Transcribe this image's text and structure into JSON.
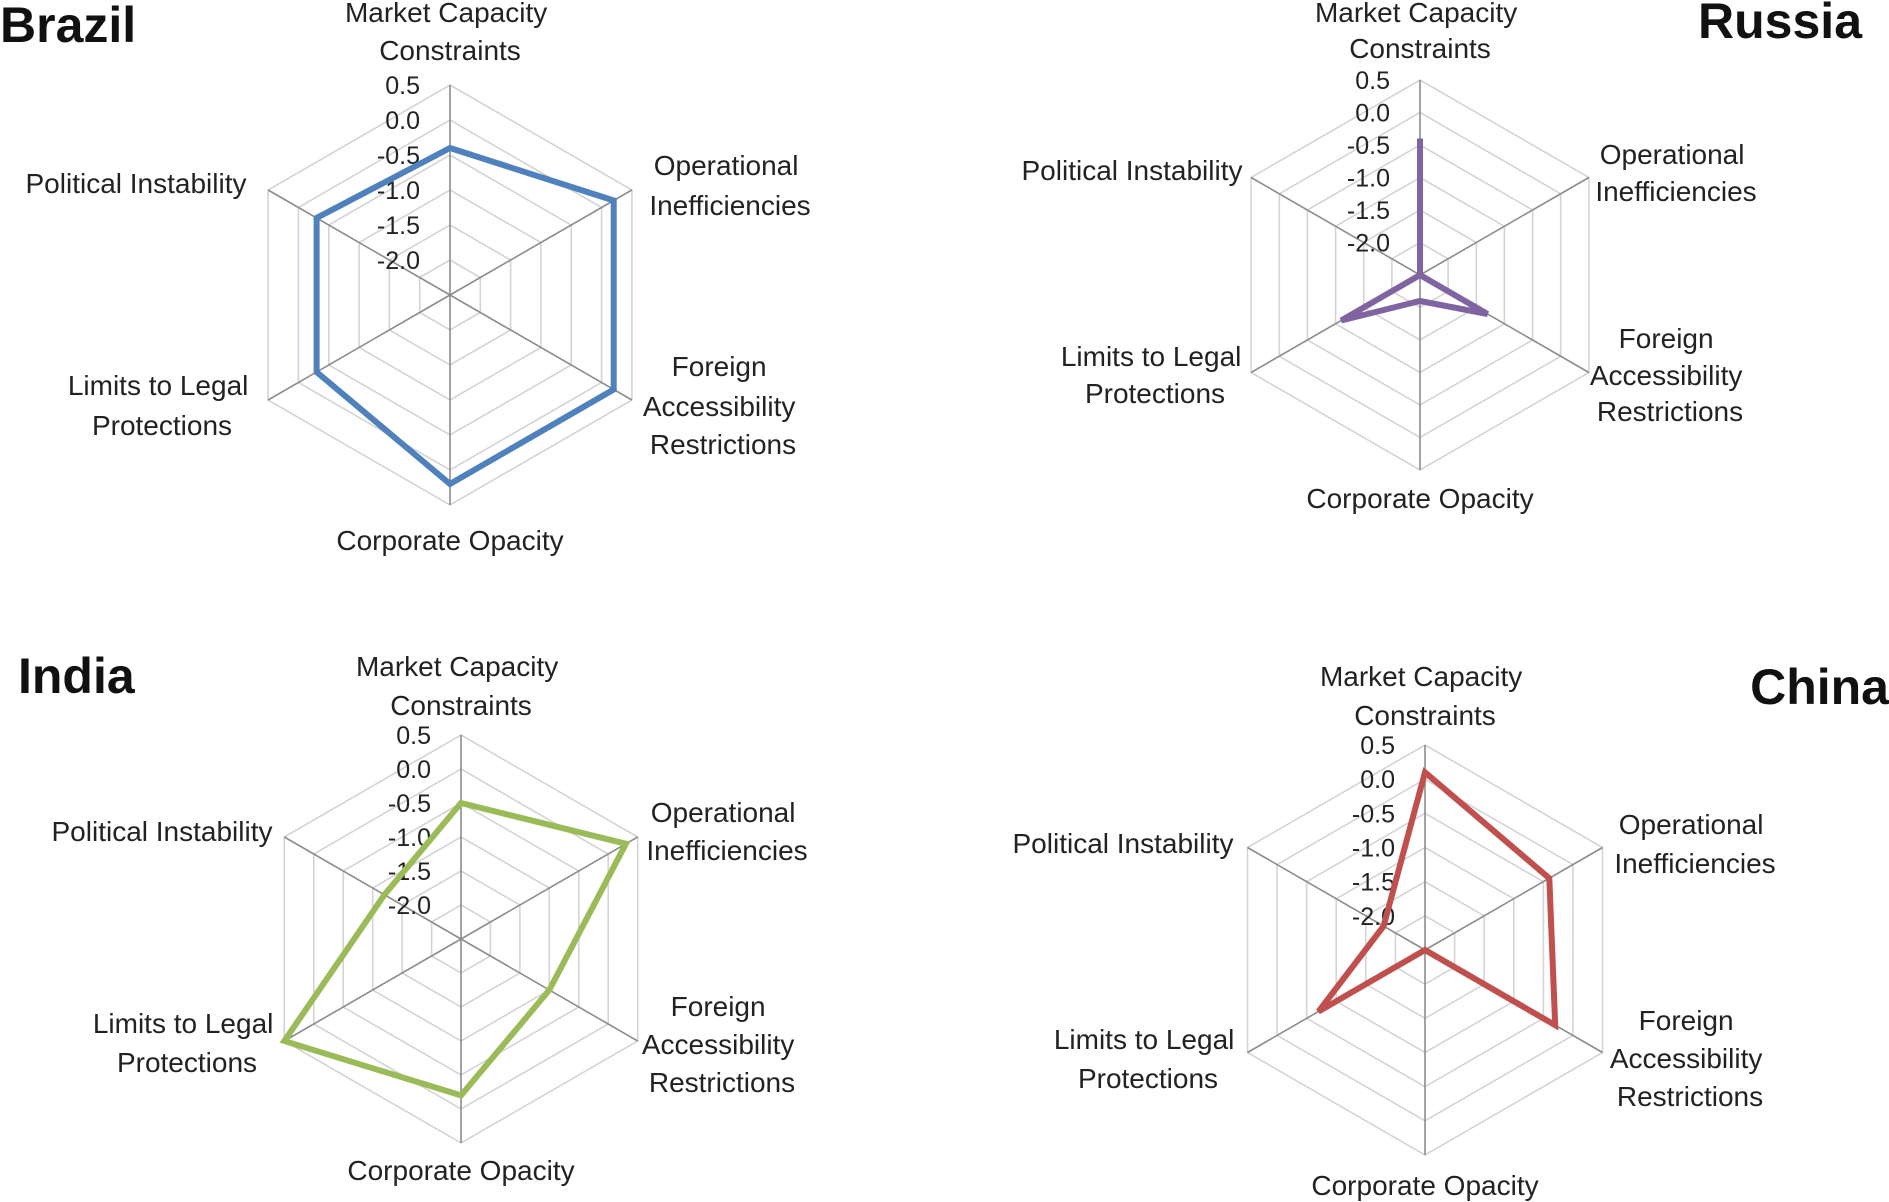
{
  "chart_data": [
    {
      "type": "radar",
      "title": "Brazil",
      "axes": [
        [
          "Market Capacity",
          "Constraints"
        ],
        [
          "Operational",
          "Inefficiencies"
        ],
        [
          "Foreign",
          "Accessibility",
          "Restrictions"
        ],
        [
          "Corporate Opacity"
        ],
        [
          "Limits to Legal",
          "Protections"
        ],
        [
          "Political Instability"
        ]
      ],
      "ticks": [
        "0.5",
        "0.0",
        "-0.5",
        "-1.0",
        "-1.5",
        "-2.0"
      ],
      "range": [
        -2.5,
        0.5
      ],
      "grid": true,
      "series": [
        {
          "values": [
            -0.4,
            0.2,
            0.2,
            0.2,
            -0.3,
            -0.3
          ],
          "color": "#4f81bd"
        }
      ]
    },
    {
      "type": "radar",
      "title": "Russia",
      "axes": [
        [
          "Market Capacity",
          "Constraints"
        ],
        [
          "Operational",
          "Inefficiencies"
        ],
        [
          "Foreign",
          "Accessibility",
          "Restrictions"
        ],
        [
          "Corporate Opacity"
        ],
        [
          "Limits to Legal",
          "Protections"
        ],
        [
          "Political Instability"
        ]
      ],
      "ticks": [
        "0.5",
        "0.0",
        "-0.5",
        "-1.0",
        "-1.5",
        "-2.0"
      ],
      "range": [
        -2.5,
        0.5
      ],
      "grid": true,
      "series": [
        {
          "values": [
            -0.4,
            -2.5,
            -1.3,
            -2.1,
            -1.1,
            -2.5
          ],
          "color": "#8064a2"
        }
      ]
    },
    {
      "type": "radar",
      "title": "India",
      "axes": [
        [
          "Market Capacity",
          "Constraints"
        ],
        [
          "Operational",
          "Inefficiencies"
        ],
        [
          "Foreign",
          "Accessibility",
          "Restrictions"
        ],
        [
          "Corporate Opacity"
        ],
        [
          "Limits to Legal",
          "Protections"
        ],
        [
          "Political Instability"
        ]
      ],
      "ticks": [
        "0.5",
        "0.0",
        "-0.5",
        "-1.0",
        "-1.5",
        "-2.0"
      ],
      "range": [
        -2.5,
        0.5
      ],
      "grid": true,
      "series": [
        {
          "values": [
            -0.5,
            0.3,
            -1.0,
            -0.2,
            0.5,
            -1.2
          ],
          "color": "#9bbb59"
        }
      ]
    },
    {
      "type": "radar",
      "title": "China",
      "axes": [
        [
          "Market Capacity",
          "Constraints"
        ],
        [
          "Operational",
          "Inefficiencies"
        ],
        [
          "Foreign",
          "Accessibility",
          "Restrictions"
        ],
        [
          "Corporate Opacity"
        ],
        [
          "Limits to Legal",
          "Protections"
        ],
        [
          "Political Instability"
        ]
      ],
      "ticks": [
        "0.5",
        "0.0",
        "-0.5",
        "-1.0",
        "-1.5",
        "-2.0"
      ],
      "range": [
        -2.5,
        0.5
      ],
      "grid": true,
      "series": [
        {
          "values": [
            0.1,
            -0.4,
            -0.3,
            -2.5,
            -0.7,
            -1.8
          ],
          "color": "#c0504d"
        }
      ]
    }
  ]
}
